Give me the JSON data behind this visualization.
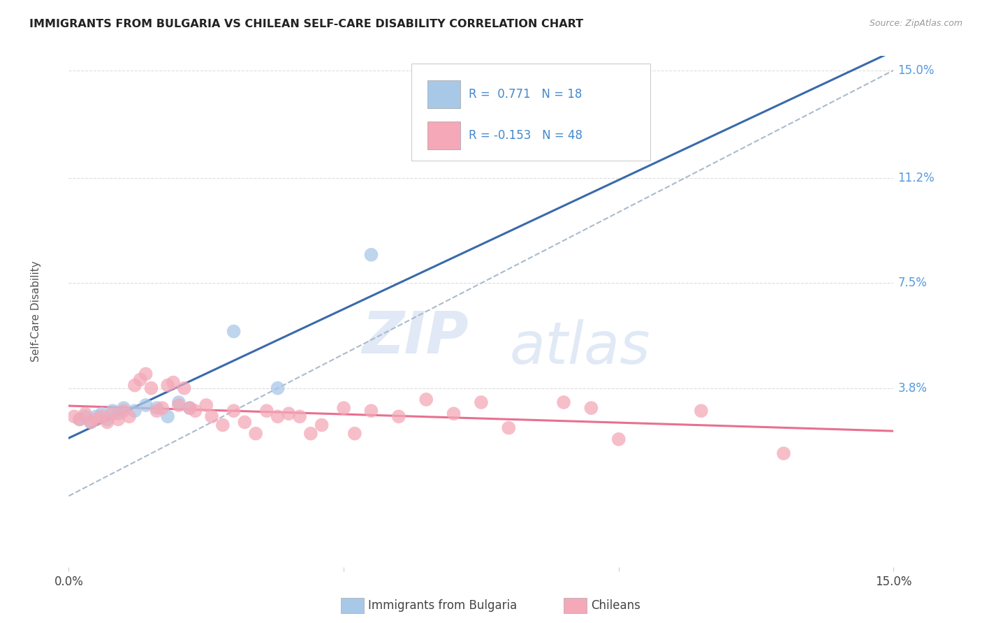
{
  "title": "IMMIGRANTS FROM BULGARIA VS CHILEAN SELF-CARE DISABILITY CORRELATION CHART",
  "source": "Source: ZipAtlas.com",
  "ylabel": "Self-Care Disability",
  "x_min": 0.0,
  "x_max": 0.15,
  "y_min": -0.025,
  "y_max": 0.155,
  "bulgaria_color": "#a8c8e8",
  "chilean_color": "#f4a8b8",
  "bulgaria_line_color": "#3a6aaa",
  "chilean_line_color": "#e87090",
  "trendline_dashed_color": "#aabbcc",
  "watermark_zip": "ZIP",
  "watermark_atlas": "atlas",
  "grid_color": "#dddddd",
  "grid_style": "--",
  "bulgaria_scatter": [
    [
      0.002,
      0.027
    ],
    [
      0.003,
      0.028
    ],
    [
      0.004,
      0.026
    ],
    [
      0.005,
      0.028
    ],
    [
      0.006,
      0.029
    ],
    [
      0.007,
      0.027
    ],
    [
      0.008,
      0.03
    ],
    [
      0.009,
      0.029
    ],
    [
      0.01,
      0.031
    ],
    [
      0.012,
      0.03
    ],
    [
      0.014,
      0.032
    ],
    [
      0.016,
      0.031
    ],
    [
      0.018,
      0.028
    ],
    [
      0.02,
      0.033
    ],
    [
      0.022,
      0.031
    ],
    [
      0.03,
      0.058
    ],
    [
      0.038,
      0.038
    ],
    [
      0.055,
      0.085
    ]
  ],
  "chilean_scatter": [
    [
      0.001,
      0.028
    ],
    [
      0.002,
      0.027
    ],
    [
      0.003,
      0.029
    ],
    [
      0.004,
      0.026
    ],
    [
      0.005,
      0.027
    ],
    [
      0.006,
      0.028
    ],
    [
      0.007,
      0.026
    ],
    [
      0.008,
      0.029
    ],
    [
      0.009,
      0.027
    ],
    [
      0.01,
      0.03
    ],
    [
      0.011,
      0.028
    ],
    [
      0.012,
      0.039
    ],
    [
      0.013,
      0.041
    ],
    [
      0.014,
      0.043
    ],
    [
      0.015,
      0.038
    ],
    [
      0.016,
      0.03
    ],
    [
      0.017,
      0.031
    ],
    [
      0.018,
      0.039
    ],
    [
      0.019,
      0.04
    ],
    [
      0.02,
      0.032
    ],
    [
      0.021,
      0.038
    ],
    [
      0.022,
      0.031
    ],
    [
      0.023,
      0.03
    ],
    [
      0.025,
      0.032
    ],
    [
      0.026,
      0.028
    ],
    [
      0.028,
      0.025
    ],
    [
      0.03,
      0.03
    ],
    [
      0.032,
      0.026
    ],
    [
      0.034,
      0.022
    ],
    [
      0.036,
      0.03
    ],
    [
      0.038,
      0.028
    ],
    [
      0.04,
      0.029
    ],
    [
      0.042,
      0.028
    ],
    [
      0.044,
      0.022
    ],
    [
      0.046,
      0.025
    ],
    [
      0.05,
      0.031
    ],
    [
      0.052,
      0.022
    ],
    [
      0.055,
      0.03
    ],
    [
      0.06,
      0.028
    ],
    [
      0.065,
      0.034
    ],
    [
      0.07,
      0.029
    ],
    [
      0.075,
      0.033
    ],
    [
      0.08,
      0.024
    ],
    [
      0.09,
      0.033
    ],
    [
      0.095,
      0.031
    ],
    [
      0.1,
      0.02
    ],
    [
      0.115,
      0.03
    ],
    [
      0.13,
      0.015
    ]
  ],
  "y_ticks_right": [
    0.038,
    0.075,
    0.112,
    0.15
  ],
  "y_tick_labels_right": [
    "3.8%",
    "7.5%",
    "11.2%",
    "15.0%"
  ],
  "x_ticks": [
    0.0,
    0.05,
    0.1,
    0.15
  ],
  "x_tick_labels": [
    "0.0%",
    "",
    "",
    "15.0%"
  ]
}
